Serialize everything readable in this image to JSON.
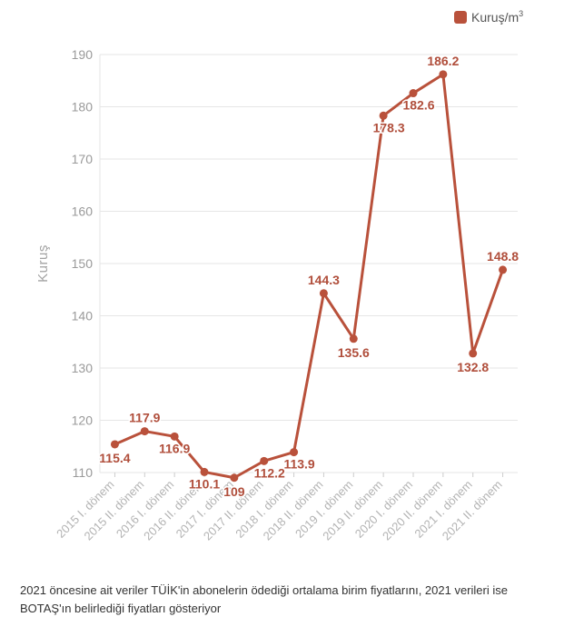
{
  "chart_data": {
    "type": "line",
    "categories": [
      "2015 I. dönem",
      "2015 II. dönem",
      "2016 I. dönem",
      "2016 II. dönem",
      "2017 I. dönem",
      "2017 II. dönem",
      "2018 I. dönem",
      "2018 II. dönem",
      "2019 I. dönem",
      "2019 II. dönem",
      "2020 I. dönem",
      "2020 II. dönem",
      "2021 I. dönem",
      "2021 II. dönem"
    ],
    "series": [
      {
        "name": "Kuruş/m",
        "name_sup": "3",
        "color": "#b9513b",
        "values": [
          115.4,
          117.9,
          116.9,
          110.1,
          109,
          112.2,
          113.9,
          144.3,
          135.6,
          178.3,
          182.6,
          186.2,
          132.8,
          148.8
        ],
        "labels": [
          "115.4",
          "117.9",
          "116.9",
          "110.1",
          "109",
          "112.2",
          "113.9",
          "144.3",
          "135.6",
          "178.3",
          "182.6",
          "186.2",
          "132.8",
          "148.8"
        ]
      }
    ],
    "ylabel": "Kuruş",
    "ylim": [
      110,
      190
    ],
    "yticks": [
      110,
      120,
      130,
      140,
      150,
      160,
      170,
      180,
      190
    ],
    "ytick_labels": [
      "110",
      "120",
      "130",
      "140",
      "150",
      "160",
      "170",
      "180",
      "190"
    ],
    "grid": true,
    "legend_position": "top-right"
  },
  "caption": "2021 öncesine ait veriler TÜİK'in abonelerin ödediği ortalama birim fiyatlarını, 2021 verileri ise BOTAŞ'ın belirlediği fiyatları gösteriyor"
}
